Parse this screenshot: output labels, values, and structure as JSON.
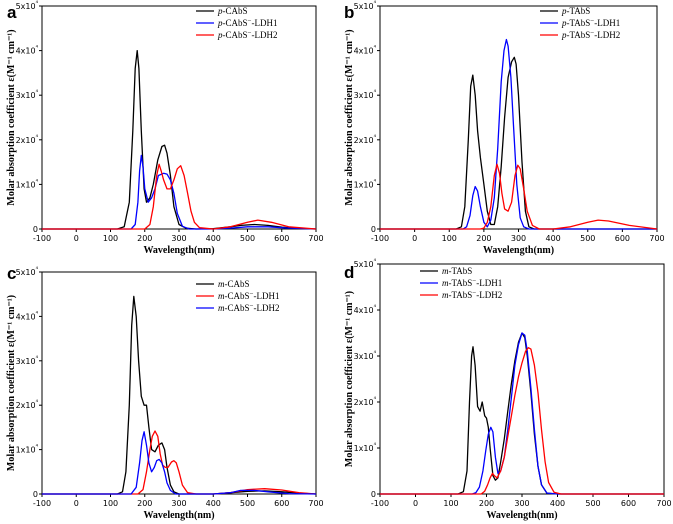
{
  "chart_data": [
    {
      "panel_letter": "a",
      "type": "line",
      "xlabel": "Wavelength(nm)",
      "ylabel": "Molar absorption coefficient ε(M⁻¹ cm⁻¹)",
      "xlim": [
        -100,
        700
      ],
      "ylim": [
        0,
        50000
      ],
      "xticks": [
        -100,
        0,
        100,
        200,
        300,
        400,
        500,
        600,
        700
      ],
      "yticks": [
        0,
        10000,
        20000,
        30000,
        40000,
        50000
      ],
      "ytick_labels": [
        "0",
        "1x10⁴",
        "2x10⁴",
        "3x10⁴",
        "4x10⁴",
        "5x10⁴"
      ],
      "legend_position": "top-right",
      "series": [
        {
          "name": "p-CAbS",
          "color": "#000000",
          "x": [
            -100,
            120,
            140,
            155,
            165,
            172,
            178,
            183,
            190,
            198,
            205,
            215,
            225,
            238,
            250,
            258,
            265,
            275,
            285,
            300,
            320,
            350,
            400,
            450,
            480,
            520,
            560,
            600,
            650,
            700
          ],
          "y": [
            0,
            0,
            500,
            6000,
            22000,
            36000,
            40000,
            36000,
            22000,
            9000,
            6000,
            7000,
            10000,
            15500,
            18500,
            18800,
            17000,
            12000,
            5000,
            1000,
            200,
            0,
            100,
            500,
            800,
            1000,
            800,
            400,
            100,
            0
          ]
        },
        {
          "name": "p-CAbS−-LDH1",
          "color": "#0000ff",
          "x": [
            -100,
            160,
            172,
            180,
            185,
            190,
            195,
            200,
            210,
            220,
            230,
            240,
            255,
            265,
            275,
            285,
            295,
            310,
            330,
            400,
            450,
            500,
            560,
            620,
            700
          ],
          "y": [
            0,
            0,
            1000,
            6000,
            13000,
            16500,
            14000,
            9000,
            6000,
            7000,
            9000,
            12000,
            12500,
            12300,
            11000,
            8000,
            3500,
            600,
            0,
            0,
            200,
            500,
            500,
            200,
            0
          ]
        },
        {
          "name": "p-CAbS−-LDH2",
          "color": "#ff0000",
          "x": [
            -100,
            200,
            215,
            225,
            235,
            242,
            248,
            255,
            265,
            275,
            285,
            295,
            305,
            315,
            325,
            335,
            345,
            360,
            400,
            450,
            500,
            530,
            570,
            620,
            700
          ],
          "y": [
            0,
            0,
            1000,
            5000,
            12000,
            14500,
            13000,
            11000,
            9000,
            9000,
            11000,
            13500,
            14200,
            12000,
            8000,
            4000,
            1500,
            300,
            0,
            500,
            1500,
            2000,
            1500,
            500,
            0
          ]
        }
      ]
    },
    {
      "panel_letter": "b",
      "type": "line",
      "xlabel": "Wavelength(nm)",
      "ylabel": "Molar absorption coefficient ε(M⁻¹ cm⁻¹)",
      "xlim": [
        -100,
        700
      ],
      "ylim": [
        0,
        50000
      ],
      "xticks": [
        -100,
        0,
        100,
        200,
        300,
        400,
        500,
        600,
        700
      ],
      "yticks": [
        0,
        10000,
        20000,
        30000,
        40000,
        50000
      ],
      "ytick_labels": [
        "0",
        "1x10⁴",
        "2x10⁴",
        "3x10⁴",
        "4x10⁴",
        "5x10⁴"
      ],
      "legend_position": "top-right",
      "series": [
        {
          "name": "p-TAbS",
          "color": "#000000",
          "x": [
            -100,
            120,
            135,
            145,
            155,
            162,
            168,
            175,
            182,
            190,
            200,
            210,
            220,
            230,
            240,
            250,
            260,
            270,
            280,
            288,
            293,
            300,
            310,
            320,
            330,
            345,
            360,
            400,
            700
          ],
          "y": [
            0,
            0,
            500,
            5000,
            20000,
            32000,
            34500,
            30000,
            22000,
            16000,
            10000,
            4000,
            1000,
            1000,
            5000,
            14000,
            25000,
            34000,
            37500,
            38500,
            37000,
            30000,
            15000,
            4000,
            500,
            0,
            0,
            0,
            0
          ]
        },
        {
          "name": "p-TAbS−-LDH1",
          "color": "#0000ff",
          "x": [
            -100,
            140,
            150,
            160,
            168,
            175,
            182,
            190,
            200,
            210,
            220,
            230,
            240,
            250,
            258,
            265,
            270,
            278,
            285,
            295,
            305,
            315,
            330,
            400,
            700
          ],
          "y": [
            0,
            0,
            500,
            3000,
            7500,
            9500,
            8500,
            5000,
            1500,
            500,
            2000,
            7000,
            18000,
            33000,
            40000,
            42500,
            41000,
            34000,
            24000,
            10000,
            2500,
            500,
            0,
            0,
            0
          ]
        },
        {
          "name": "p-TAbS−-LDH2",
          "color": "#ff0000",
          "x": [
            -100,
            190,
            200,
            210,
            220,
            230,
            238,
            245,
            252,
            260,
            270,
            280,
            290,
            298,
            305,
            315,
            325,
            340,
            360,
            400,
            450,
            500,
            530,
            560,
            620,
            700
          ],
          "y": [
            0,
            0,
            200,
            1500,
            5000,
            12000,
            14500,
            12500,
            8000,
            4500,
            4000,
            6000,
            12000,
            14300,
            13500,
            9000,
            4000,
            800,
            0,
            0,
            500,
            1500,
            2000,
            1800,
            800,
            0
          ]
        }
      ]
    },
    {
      "panel_letter": "c",
      "type": "line",
      "xlabel": "Wavelength(nm)",
      "ylabel": "Molar absorption coefficient ε(M⁻¹ cm⁻¹)",
      "xlim": [
        -100,
        700
      ],
      "ylim": [
        0,
        50000
      ],
      "xticks": [
        -100,
        0,
        100,
        200,
        300,
        400,
        500,
        600,
        700
      ],
      "yticks": [
        0,
        10000,
        20000,
        30000,
        40000,
        50000
      ],
      "ytick_labels": [
        "0",
        "1x10⁴",
        "2x10⁴",
        "3x10⁴",
        "4x10⁴",
        "5x10⁴"
      ],
      "legend_position": "top-right",
      "series": [
        {
          "name": "m-CAbS",
          "color": "#000000",
          "x": [
            -100,
            120,
            135,
            145,
            155,
            162,
            168,
            175,
            182,
            190,
            198,
            205,
            212,
            220,
            230,
            240,
            250,
            258,
            265,
            275,
            285,
            300,
            330,
            400,
            450,
            500,
            550,
            600,
            650,
            700
          ],
          "y": [
            0,
            0,
            500,
            5000,
            20000,
            38000,
            44500,
            40000,
            30000,
            22000,
            20000,
            20000,
            15000,
            10000,
            9500,
            11000,
            11500,
            10000,
            6000,
            2000,
            500,
            0,
            0,
            0,
            300,
            600,
            700,
            500,
            200,
            0
          ]
        },
        {
          "name": "m-CAbS−-LDH1",
          "color": "#ff0000",
          "x": [
            -100,
            180,
            195,
            205,
            215,
            222,
            230,
            238,
            245,
            252,
            260,
            268,
            278,
            285,
            292,
            300,
            310,
            325,
            350,
            400,
            450,
            500,
            550,
            600,
            650,
            700
          ],
          "y": [
            0,
            0,
            1000,
            5000,
            10000,
            13000,
            14200,
            13000,
            9000,
            6500,
            6000,
            6000,
            7200,
            7500,
            7000,
            5000,
            2000,
            300,
            0,
            0,
            300,
            1000,
            1200,
            900,
            300,
            0
          ]
        },
        {
          "name": "m-CAbS−-LDH2",
          "color": "#0000ff",
          "x": [
            -100,
            160,
            175,
            185,
            192,
            198,
            205,
            212,
            220,
            228,
            235,
            242,
            250,
            258,
            265,
            275,
            290,
            310,
            400,
            450,
            480,
            520,
            560,
            620,
            700
          ],
          "y": [
            0,
            0,
            1500,
            7000,
            12000,
            14000,
            11000,
            7000,
            5000,
            6000,
            7500,
            7800,
            7000,
            5000,
            2500,
            800,
            0,
            0,
            0,
            300,
            800,
            800,
            500,
            100,
            0
          ]
        }
      ]
    },
    {
      "panel_letter": "d",
      "type": "line",
      "xlabel": "Wavelength(nm)",
      "ylabel": "Molar absorption coefficient ε(M⁻¹ cm⁻¹)",
      "xlim": [
        -100,
        700
      ],
      "ylim": [
        0,
        50000
      ],
      "xticks": [
        -100,
        0,
        100,
        200,
        300,
        400,
        500,
        600,
        700
      ],
      "yticks": [
        0,
        10000,
        20000,
        30000,
        40000,
        50000
      ],
      "ytick_labels": [
        "0",
        "1x10⁴",
        "2x10⁴",
        "3x10⁴",
        "4x10⁴",
        "5x10⁴"
      ],
      "legend_position": "top-left",
      "series": [
        {
          "name": "m-TAbS",
          "color": "#000000",
          "x": [
            -100,
            120,
            135,
            145,
            152,
            158,
            162,
            168,
            175,
            182,
            188,
            195,
            200,
            205,
            210,
            218,
            225,
            232,
            240,
            250,
            260,
            270,
            280,
            290,
            300,
            308,
            315,
            325,
            335,
            345,
            355,
            370,
            400,
            700
          ],
          "y": [
            0,
            0,
            500,
            5000,
            20000,
            30000,
            32000,
            28000,
            19000,
            18000,
            20000,
            17000,
            16500,
            14500,
            10000,
            4000,
            3000,
            3500,
            7000,
            12000,
            18000,
            24000,
            29000,
            33000,
            35000,
            34000,
            30000,
            22000,
            13000,
            6000,
            2000,
            200,
            0,
            0
          ]
        },
        {
          "name": "m-TAbS−-LDH1",
          "color": "#0000ff",
          "x": [
            -100,
            160,
            170,
            180,
            190,
            198,
            205,
            212,
            218,
            225,
            232,
            240,
            250,
            260,
            270,
            280,
            290,
            300,
            308,
            315,
            325,
            335,
            345,
            355,
            370,
            400,
            700
          ],
          "y": [
            0,
            0,
            300,
            1500,
            5000,
            9500,
            13000,
            14500,
            13500,
            8000,
            4500,
            5000,
            8000,
            14000,
            21000,
            28000,
            32500,
            35000,
            34500,
            31000,
            23000,
            14000,
            6000,
            2000,
            200,
            0,
            0
          ]
        },
        {
          "name": "m-TAbS−-LDH2",
          "color": "#ff0000",
          "x": [
            -100,
            185,
            195,
            203,
            210,
            217,
            222,
            230,
            240,
            250,
            260,
            270,
            280,
            290,
            300,
            310,
            318,
            325,
            335,
            345,
            355,
            365,
            375,
            390,
            410,
            700
          ],
          "y": [
            0,
            0,
            600,
            2000,
            3500,
            4500,
            4000,
            3500,
            5000,
            8000,
            12500,
            17000,
            21500,
            25500,
            28500,
            31000,
            31800,
            31500,
            28000,
            22000,
            14000,
            7000,
            2500,
            400,
            0,
            0
          ]
        }
      ]
    }
  ]
}
